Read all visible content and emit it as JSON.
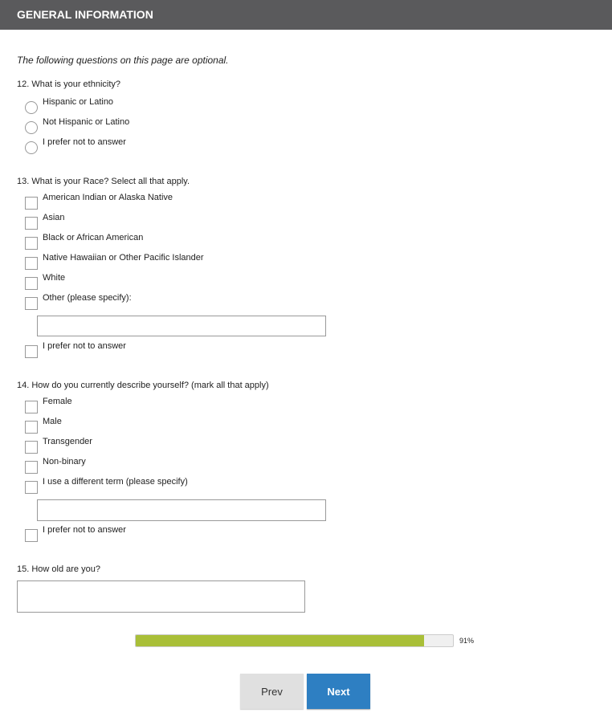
{
  "header": {
    "title": "GENERAL INFORMATION"
  },
  "intro": "The following questions on this page are optional.",
  "q12": {
    "label": "12. What is your ethnicity?",
    "options": [
      "Hispanic or Latino",
      "Not Hispanic or Latino",
      "I prefer not to answer"
    ]
  },
  "q13": {
    "label": "13. What is your Race? Select all that apply.",
    "options": [
      "American Indian or Alaska Native",
      "Asian",
      "Black or African American",
      "Native Hawaiian or Other Pacific Islander",
      "White",
      "Other (please specify):"
    ],
    "other_value": "",
    "prefer": "I prefer not to answer"
  },
  "q14": {
    "label": "14. How do you currently describe yourself? (mark all that apply)",
    "options": [
      "Female",
      "Male",
      "Transgender",
      "Non-binary",
      "I use a different term (please specify)"
    ],
    "other_value": "",
    "prefer": "I prefer not to answer"
  },
  "q15": {
    "label": "15. How old are you?",
    "value": ""
  },
  "progress": {
    "percent": 91,
    "label": "91%",
    "color": "#a9bf38"
  },
  "buttons": {
    "prev": "Prev",
    "next": "Next"
  }
}
